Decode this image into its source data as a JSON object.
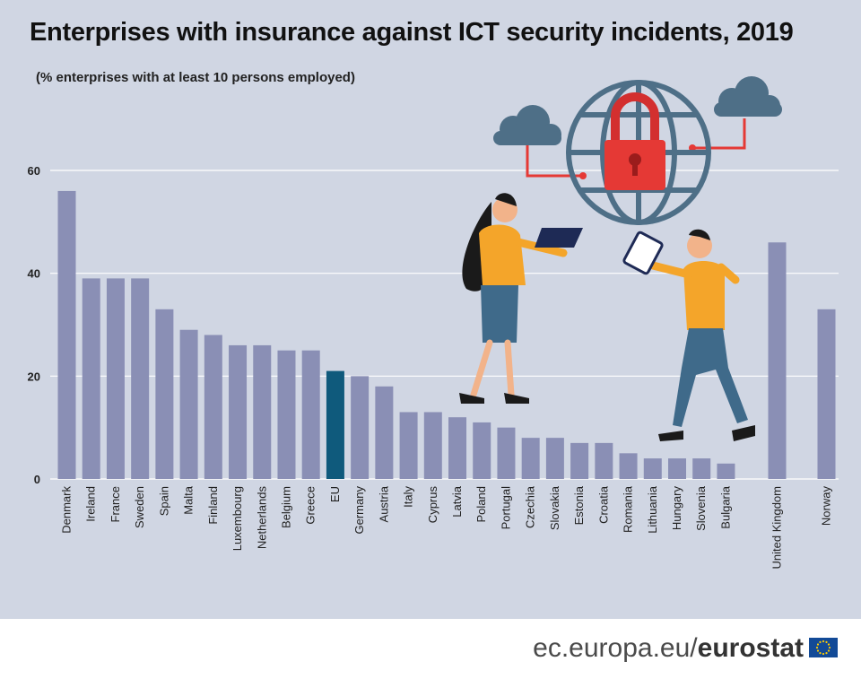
{
  "title": "Enterprises with insurance against ICT security incidents, 2019",
  "subtitle": "(% enterprises with at least 10 persons employed)",
  "footer": {
    "site": "ec.europa.eu/",
    "brand": "eurostat"
  },
  "colors": {
    "bar": "#8a8fb5",
    "highlight": "#0f5a7c",
    "grid": "#ffffff",
    "background": "#d0d6e3"
  },
  "chart_data": {
    "type": "bar",
    "title": "Enterprises with insurance against ICT security incidents, 2019",
    "subtitle": "(% enterprises with at least 10 persons employed)",
    "xlabel": "",
    "ylabel": "",
    "ylim": [
      0,
      60
    ],
    "yticks": [
      0,
      20,
      40,
      60
    ],
    "grid": true,
    "highlight": "EU",
    "categories": [
      "Denmark",
      "Ireland",
      "France",
      "Sweden",
      "Spain",
      "Malta",
      "Finland",
      "Luxembourg",
      "Netherlands",
      "Belgium",
      "Greece",
      "EU",
      "Germany",
      "Austria",
      "Italy",
      "Cyprus",
      "Latvia",
      "Poland",
      "Portugal",
      "Czechia",
      "Slovakia",
      "Estonia",
      "Croatia",
      "Romania",
      "Lithuania",
      "Hungary",
      "Slovenia",
      "Bulgaria",
      "United Kingdom",
      "Norway"
    ],
    "values": [
      56,
      39,
      39,
      39,
      33,
      29,
      28,
      26,
      26,
      25,
      25,
      21,
      20,
      18,
      13,
      13,
      12,
      11,
      10,
      8,
      8,
      7,
      7,
      5,
      4,
      4,
      4,
      3,
      46,
      33
    ]
  }
}
